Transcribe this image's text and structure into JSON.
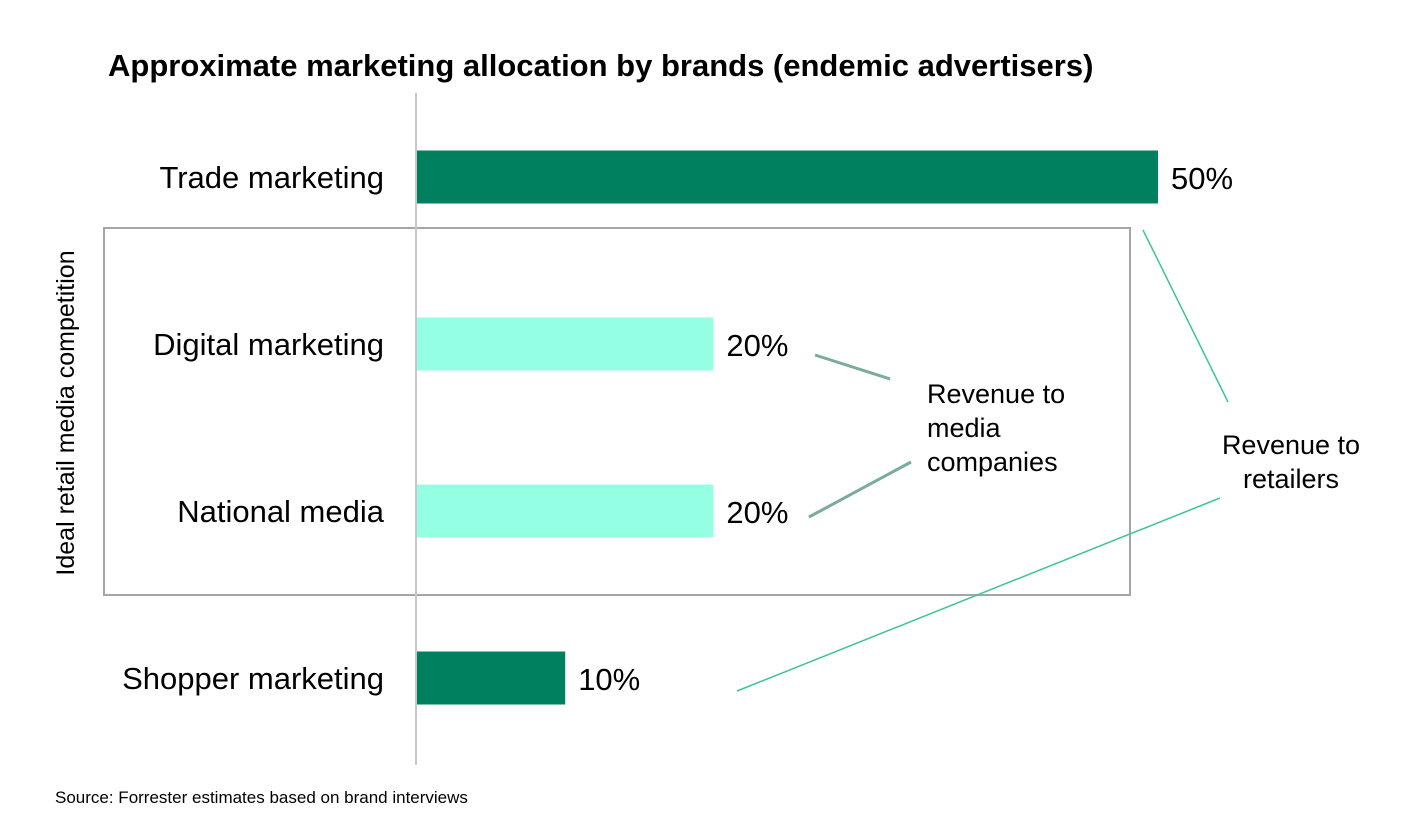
{
  "chart_data": {
    "type": "bar",
    "orientation": "horizontal",
    "title": "Approximate marketing allocation by brands (endemic advertisers)",
    "categories": [
      "Trade marketing",
      "Digital marketing",
      "National media",
      "Shopper marketing"
    ],
    "values": [
      50,
      20,
      20,
      10
    ],
    "value_labels": [
      "50%",
      "20%",
      "20%",
      "10%"
    ],
    "bar_colors": [
      "#00805f",
      "#94ffe3",
      "#94ffe3",
      "#00805f"
    ],
    "xlim": [
      0,
      50
    ],
    "grid": false,
    "group_box": {
      "label": "Ideal retail media competition",
      "categories": [
        "Digital marketing",
        "National media"
      ]
    },
    "annotations": [
      {
        "lines": [
          "Revenue to",
          "media",
          "companies"
        ],
        "targets": [
          "Digital marketing",
          "National media"
        ],
        "color": "#7aab9c"
      },
      {
        "lines": [
          "Revenue to",
          "retailers"
        ],
        "targets": [
          "Trade marketing",
          "Shopper marketing"
        ],
        "color": "#3cc495"
      }
    ]
  },
  "footer": {
    "source": "Source: Forrester estimates based on brand interviews"
  }
}
